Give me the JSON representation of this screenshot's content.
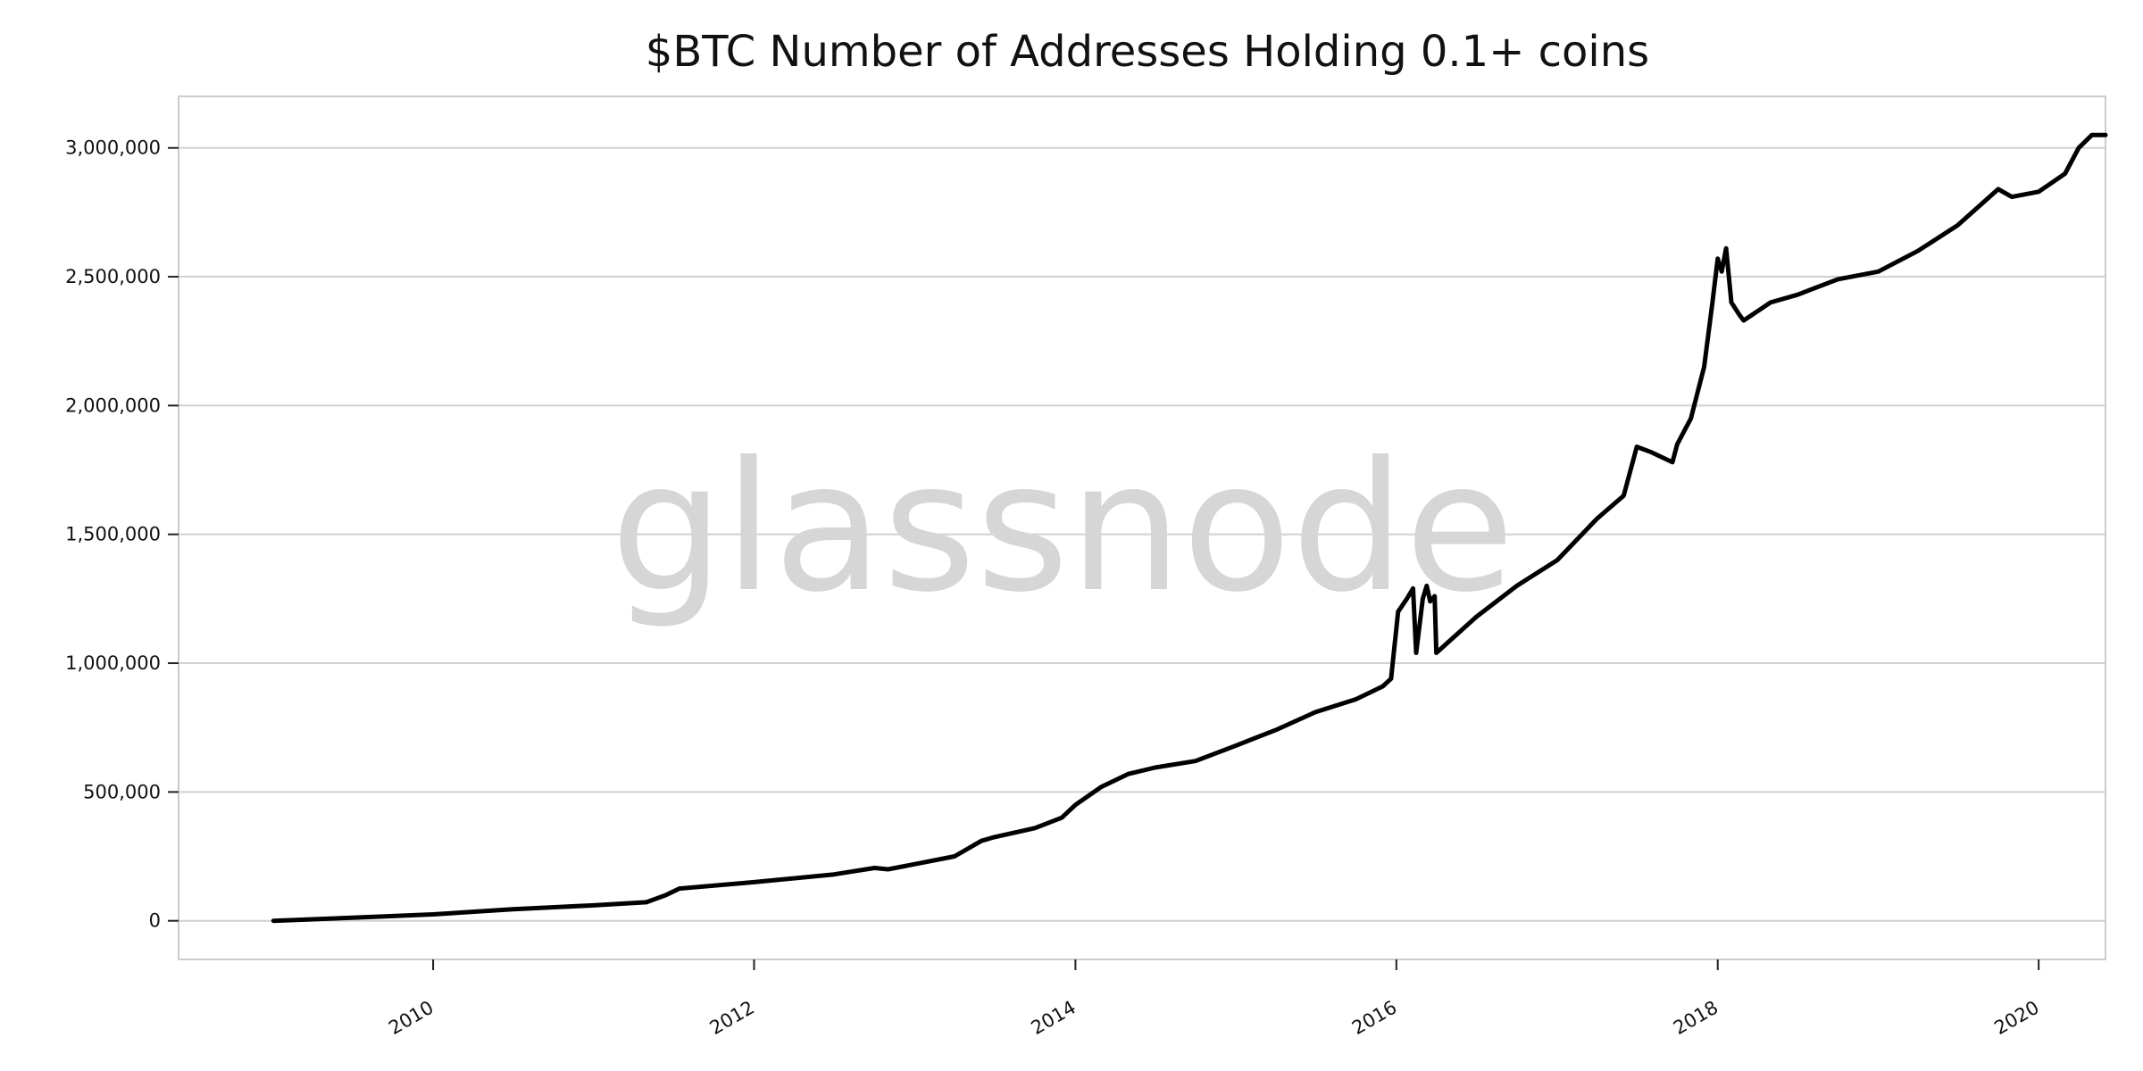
{
  "chart_data": {
    "type": "line",
    "title": "$BTC Number of Addresses Holding 0.1+ coins",
    "xlabel": "",
    "ylabel": "",
    "watermark": "glassnode",
    "grid": "horizontal",
    "colors": {
      "line": "#000000",
      "grid": "#d0d0d0",
      "frame": "#cccccc",
      "watermark": "#d6d6d6"
    },
    "xlim": [
      "2008-06-01",
      "2020-06-01"
    ],
    "ylim": [
      -150000,
      3200000
    ],
    "x_ticks": [
      "2010",
      "2012",
      "2014",
      "2016",
      "2018",
      "2020"
    ],
    "y_ticks": [
      {
        "value": 0,
        "label": "0"
      },
      {
        "value": 500000,
        "label": "500,000"
      },
      {
        "value": 1000000,
        "label": "1,000,000"
      },
      {
        "value": 1500000,
        "label": "1,500,000"
      },
      {
        "value": 2000000,
        "label": "2,000,000"
      },
      {
        "value": 2500000,
        "label": "2,500,000"
      },
      {
        "value": 3000000,
        "label": "3,000,000"
      }
    ],
    "series": [
      {
        "points": [
          [
            "2009-01-03",
            0
          ],
          [
            "2009-07-01",
            12000
          ],
          [
            "2010-01-01",
            25000
          ],
          [
            "2010-07-01",
            45000
          ],
          [
            "2011-01-01",
            60000
          ],
          [
            "2011-05-01",
            72000
          ],
          [
            "2011-06-15",
            100000
          ],
          [
            "2011-07-15",
            125000
          ],
          [
            "2012-01-01",
            150000
          ],
          [
            "2012-07-01",
            180000
          ],
          [
            "2012-10-01",
            205000
          ],
          [
            "2012-11-01",
            200000
          ],
          [
            "2013-01-01",
            220000
          ],
          [
            "2013-04-01",
            250000
          ],
          [
            "2013-06-01",
            310000
          ],
          [
            "2013-07-01",
            325000
          ],
          [
            "2013-10-01",
            360000
          ],
          [
            "2013-12-01",
            400000
          ],
          [
            "2014-01-01",
            450000
          ],
          [
            "2014-03-01",
            520000
          ],
          [
            "2014-05-01",
            570000
          ],
          [
            "2014-07-01",
            595000
          ],
          [
            "2014-10-01",
            620000
          ],
          [
            "2015-01-01",
            680000
          ],
          [
            "2015-04-01",
            740000
          ],
          [
            "2015-07-01",
            810000
          ],
          [
            "2015-10-01",
            860000
          ],
          [
            "2015-12-01",
            910000
          ],
          [
            "2015-12-20",
            940000
          ],
          [
            "2016-01-05",
            1200000
          ],
          [
            "2016-01-25",
            1250000
          ],
          [
            "2016-02-08",
            1290000
          ],
          [
            "2016-02-15",
            1040000
          ],
          [
            "2016-03-01",
            1250000
          ],
          [
            "2016-03-10",
            1300000
          ],
          [
            "2016-03-18",
            1240000
          ],
          [
            "2016-03-28",
            1260000
          ],
          [
            "2016-04-01",
            1040000
          ],
          [
            "2016-07-01",
            1180000
          ],
          [
            "2016-10-01",
            1300000
          ],
          [
            "2017-01-01",
            1400000
          ],
          [
            "2017-04-01",
            1560000
          ],
          [
            "2017-06-01",
            1650000
          ],
          [
            "2017-07-01",
            1840000
          ],
          [
            "2017-08-01",
            1820000
          ],
          [
            "2017-09-20",
            1780000
          ],
          [
            "2017-10-01",
            1850000
          ],
          [
            "2017-11-01",
            1950000
          ],
          [
            "2017-12-01",
            2150000
          ],
          [
            "2017-12-20",
            2400000
          ],
          [
            "2018-01-01",
            2570000
          ],
          [
            "2018-01-10",
            2520000
          ],
          [
            "2018-01-20",
            2610000
          ],
          [
            "2018-02-01",
            2400000
          ],
          [
            "2018-02-20",
            2350000
          ],
          [
            "2018-03-01",
            2330000
          ],
          [
            "2018-05-01",
            2400000
          ],
          [
            "2018-07-01",
            2430000
          ],
          [
            "2018-10-01",
            2490000
          ],
          [
            "2019-01-01",
            2520000
          ],
          [
            "2019-04-01",
            2600000
          ],
          [
            "2019-07-01",
            2700000
          ],
          [
            "2019-10-01",
            2840000
          ],
          [
            "2019-11-01",
            2810000
          ],
          [
            "2020-01-01",
            2830000
          ],
          [
            "2020-03-01",
            2900000
          ],
          [
            "2020-04-01",
            3000000
          ],
          [
            "2020-05-01",
            3050000
          ],
          [
            "2020-06-01",
            3050000
          ]
        ]
      }
    ]
  }
}
